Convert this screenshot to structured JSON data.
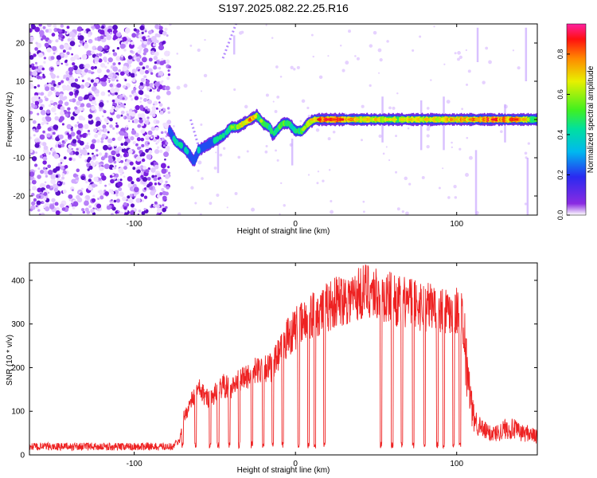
{
  "figure_title": "S197.2025.082.22.25.R16",
  "chart_data": [
    {
      "type": "heatmap",
      "title": "S197.2025.082.22.25.R16",
      "xlabel": "Height of straight line (km)",
      "ylabel": "Frequency (Hz)",
      "xlim": [
        -165,
        150
      ],
      "ylim": [
        -25,
        25
      ],
      "xticks": [
        -100,
        0,
        100
      ],
      "yticks": [
        -20,
        -10,
        0,
        10,
        20
      ],
      "colorbar": {
        "label": "Normalized spectral amplitude",
        "range": [
          0,
          0.95
        ],
        "ticks": [
          0.0,
          0.2,
          0.4,
          0.6,
          0.8
        ]
      },
      "noise_region": [
        -165,
        -78
      ],
      "signal_track": {
        "heights_km": [
          -78,
          -74,
          -70,
          -66,
          -63,
          -60,
          -56,
          -52,
          -48,
          -44,
          -40,
          -36,
          -32,
          -28,
          -24,
          -20,
          -16,
          -14,
          -12,
          -8,
          -4,
          0,
          4,
          8,
          12,
          20,
          40,
          60,
          80,
          100,
          120,
          140,
          150
        ],
        "frequency_hz": [
          -3,
          -6,
          -7,
          -9,
          -11,
          -8,
          -7,
          -6,
          -5,
          -4,
          -2,
          -2,
          -1,
          0,
          1,
          -1,
          -2,
          -4,
          -3,
          -1,
          -1,
          -3,
          -3,
          -1,
          0,
          0,
          0,
          0,
          0,
          0,
          0,
          0,
          0
        ],
        "peak_amplitude": [
          0.3,
          0.4,
          0.4,
          0.35,
          0.3,
          0.35,
          0.3,
          0.35,
          0.4,
          0.45,
          0.5,
          0.6,
          0.7,
          0.85,
          0.6,
          0.5,
          0.45,
          0.4,
          0.45,
          0.55,
          0.45,
          0.4,
          0.5,
          0.6,
          0.75,
          0.85,
          0.7,
          0.6,
          0.65,
          0.7,
          0.85,
          0.75,
          0.5
        ]
      }
    },
    {
      "type": "line",
      "title": "",
      "xlabel": "Height of straight line (km)",
      "ylabel": "SNR (10 * v/v)",
      "xlim": [
        -165,
        150
      ],
      "ylim": [
        0,
        440
      ],
      "xticks": [
        -100,
        0,
        100
      ],
      "yticks": [
        0,
        100,
        200,
        300,
        400
      ],
      "color": "#ee2222",
      "series": [
        {
          "name": "SNR",
          "x": [
            -165,
            -80,
            -72,
            -70,
            -65,
            -60,
            -55,
            -50,
            -45,
            -40,
            -35,
            -30,
            -25,
            -20,
            -15,
            -10,
            -5,
            0,
            5,
            10,
            15,
            20,
            25,
            30,
            35,
            40,
            45,
            50,
            55,
            60,
            65,
            70,
            75,
            80,
            85,
            90,
            95,
            100,
            103,
            106,
            110,
            115,
            120,
            125,
            130,
            135,
            140,
            145,
            150
          ],
          "y": [
            20,
            20,
            30,
            80,
            120,
            150,
            130,
            140,
            160,
            150,
            170,
            180,
            190,
            200,
            200,
            230,
            270,
            290,
            300,
            320,
            330,
            340,
            350,
            360,
            360,
            370,
            380,
            370,
            360,
            360,
            350,
            350,
            345,
            340,
            340,
            335,
            335,
            330,
            330,
            200,
            90,
            60,
            50,
            50,
            60,
            60,
            50,
            50,
            40
          ]
        }
      ],
      "dropouts_x": [
        -70,
        -62,
        -53,
        -48,
        -41,
        -35,
        -27,
        -20,
        -14,
        -8,
        2,
        8,
        12,
        18,
        53,
        60,
        66,
        73,
        80,
        88,
        92,
        98,
        102
      ]
    }
  ]
}
